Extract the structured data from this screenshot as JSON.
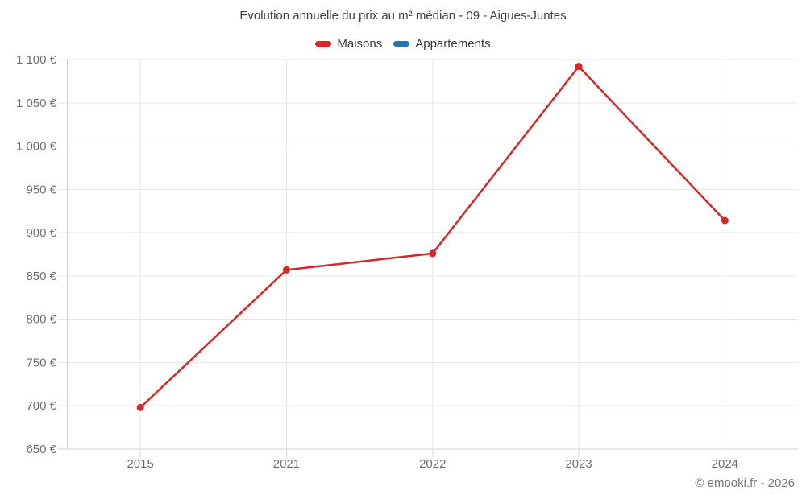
{
  "header": {
    "title": "Evolution annuelle du prix au m² médian - 09 - Aigues-Juntes"
  },
  "legend": {
    "items": [
      {
        "label": "Maisons",
        "color": "#d62728"
      },
      {
        "label": "Appartements",
        "color": "#1f77b4"
      }
    ]
  },
  "footer": {
    "credit": "© emooki.fr - 2026"
  },
  "axes": {
    "y_tick_labels": [
      "650 €",
      "700 €",
      "750 €",
      "800 €",
      "850 €",
      "900 €",
      "950 €",
      "1 000 €",
      "1 050 €",
      "1 100 €"
    ],
    "x_tick_labels": [
      "2015",
      "2021",
      "2022",
      "2023",
      "2024"
    ]
  },
  "chart_data": {
    "type": "line",
    "title": "Evolution annuelle du prix au m² médian - 09 - Aigues-Juntes",
    "x": [
      "2015",
      "2021",
      "2022",
      "2023",
      "2024"
    ],
    "series": [
      {
        "name": "Maisons",
        "color": "#d62728",
        "values": [
          698,
          857,
          876,
          1092,
          914
        ]
      },
      {
        "name": "Appartements",
        "color": "#1f77b4",
        "values": []
      }
    ],
    "xlabel": "",
    "ylabel": "",
    "ylim": [
      650,
      1100
    ],
    "y_step": 50,
    "y_tick_suffix": " €",
    "grid": true,
    "legend_position": "top",
    "point_radius": 4.5,
    "line_width": 2.5
  },
  "colors": {
    "background": "#ffffff",
    "grid": "#e7e7e7",
    "axis_line": "#cfd1d4",
    "tick": "#d6d8da",
    "tick_label": "#707070",
    "title": "#3f3f3f",
    "footer": "#757575"
  }
}
